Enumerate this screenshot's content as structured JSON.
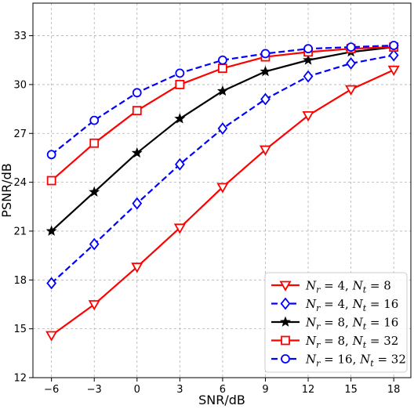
{
  "chart_data": {
    "type": "line",
    "title": "",
    "xlabel": "SNR/dB",
    "ylabel": "PSNR/dB",
    "x": [
      -6,
      -3,
      0,
      3,
      6,
      9,
      12,
      15,
      18
    ],
    "x_tick_labels": [
      "−6",
      "−3",
      "0",
      "3",
      "6",
      "9",
      "12",
      "15",
      "18"
    ],
    "y_ticks": [
      12,
      15,
      18,
      21,
      24,
      27,
      30,
      33
    ],
    "y_tick_labels": [
      "12",
      "15",
      "18",
      "21",
      "24",
      "27",
      "30",
      "33"
    ],
    "xlim": [
      -7.3,
      19.2
    ],
    "ylim": [
      12,
      35
    ],
    "grid": true,
    "legend_position": "lower-right",
    "series": [
      {
        "legend": {
          "r_val": "4",
          "t_val": "8"
        },
        "color": "#ff0000",
        "dash": "solid",
        "marker": "triangle-down",
        "values": [
          14.6,
          16.5,
          18.8,
          21.2,
          23.7,
          26.0,
          28.1,
          29.7,
          30.9
        ]
      },
      {
        "legend": {
          "r_val": "4",
          "t_val": "16"
        },
        "color": "#0000ff",
        "dash": "dashed",
        "marker": "diamond",
        "values": [
          17.8,
          20.2,
          22.7,
          25.1,
          27.3,
          29.1,
          30.5,
          31.3,
          31.8
        ]
      },
      {
        "legend": {
          "r_val": "8",
          "t_val": "16"
        },
        "color": "#000000",
        "dash": "solid",
        "marker": "star",
        "values": [
          21.0,
          23.4,
          25.8,
          27.9,
          29.6,
          30.8,
          31.5,
          32.0,
          32.3
        ]
      },
      {
        "legend": {
          "r_val": "8",
          "t_val": "32"
        },
        "color": "#ff0000",
        "dash": "solid",
        "marker": "square",
        "values": [
          24.1,
          26.4,
          28.4,
          30.0,
          31.0,
          31.7,
          32.0,
          32.2,
          32.3
        ]
      },
      {
        "legend": {
          "r_val": "16",
          "t_val": "32"
        },
        "color": "#0000ff",
        "dash": "dashed",
        "marker": "circle",
        "values": [
          25.7,
          27.8,
          29.5,
          30.7,
          31.5,
          31.9,
          32.2,
          32.3,
          32.4
        ]
      }
    ]
  }
}
